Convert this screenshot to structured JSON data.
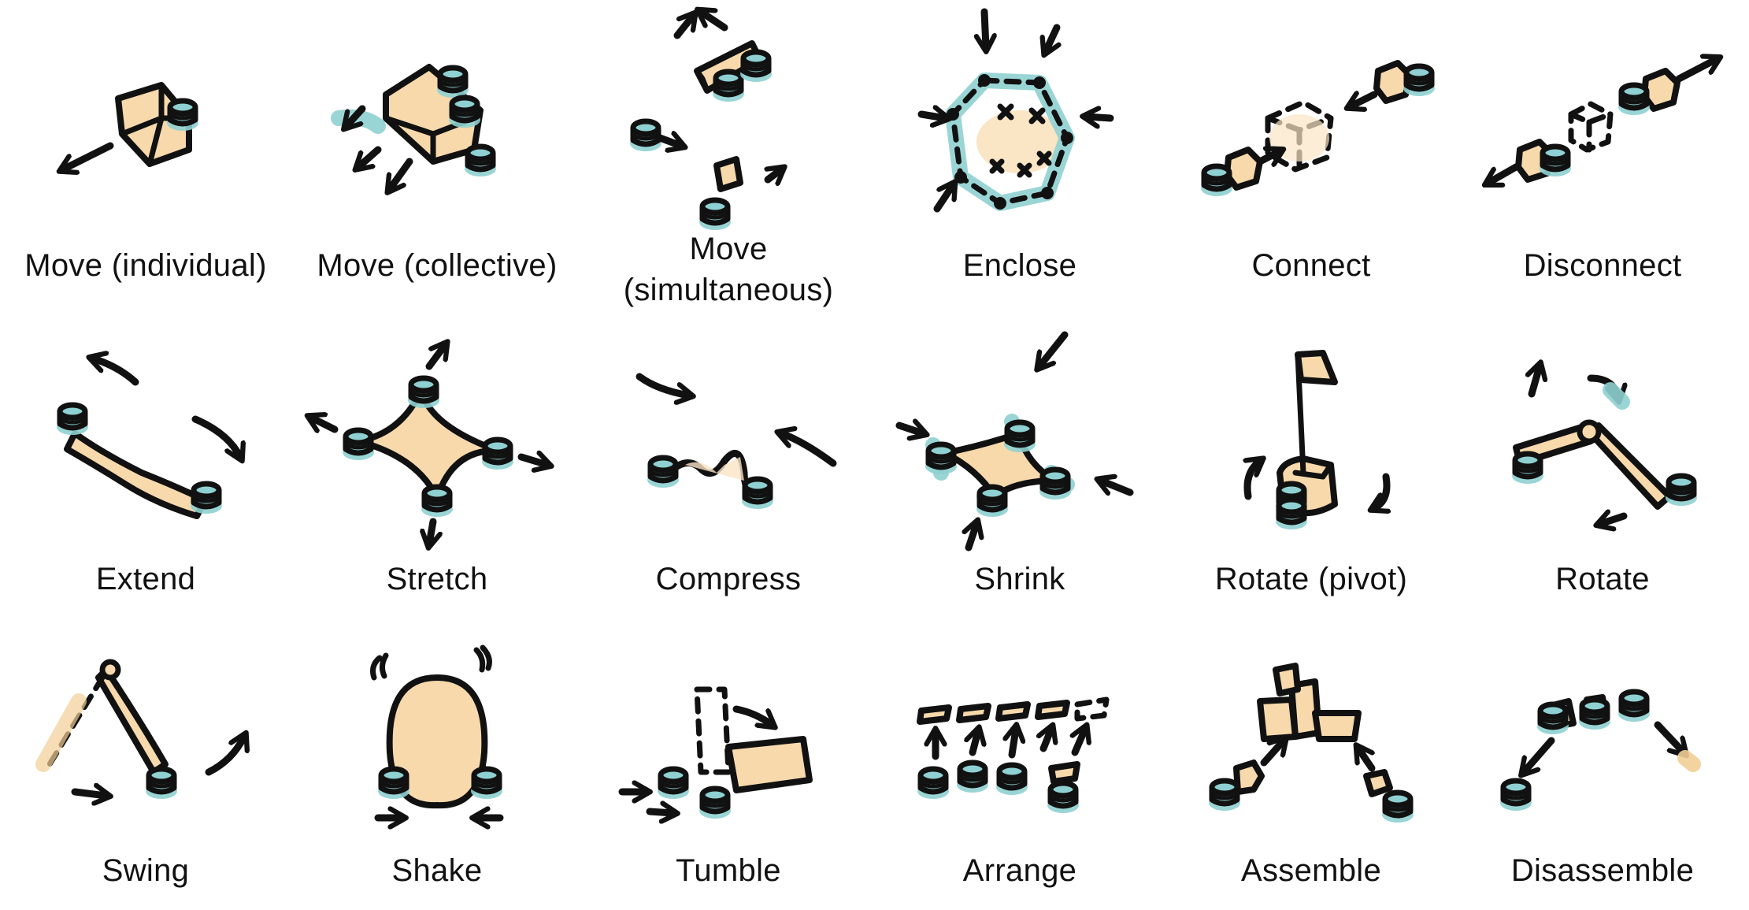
{
  "colors": {
    "tan": "#f7d9ac",
    "teal_halo": "#8fd0d2",
    "ink": "#111111"
  },
  "rows": [
    [
      {
        "key": "move-individual",
        "label": "Move (individual)"
      },
      {
        "key": "move-collective",
        "label": "Move (collective)"
      },
      {
        "key": "move-simultaneous",
        "label": "Move",
        "label2": "(simultaneous)"
      },
      {
        "key": "enclose",
        "label": "Enclose"
      },
      {
        "key": "connect",
        "label": "Connect"
      },
      {
        "key": "disconnect",
        "label": "Disconnect"
      }
    ],
    [
      {
        "key": "extend",
        "label": "Extend"
      },
      {
        "key": "stretch",
        "label": "Stretch"
      },
      {
        "key": "compress",
        "label": "Compress"
      },
      {
        "key": "shrink",
        "label": "Shrink"
      },
      {
        "key": "rotate-pivot",
        "label": "Rotate (pivot)"
      },
      {
        "key": "rotate",
        "label": "Rotate"
      }
    ],
    [
      {
        "key": "swing",
        "label": "Swing"
      },
      {
        "key": "shake",
        "label": "Shake"
      },
      {
        "key": "tumble",
        "label": "Tumble"
      },
      {
        "key": "arrange",
        "label": "Arrange"
      },
      {
        "key": "assemble",
        "label": "Assemble"
      },
      {
        "key": "disassemble",
        "label": "Disassemble"
      }
    ]
  ]
}
